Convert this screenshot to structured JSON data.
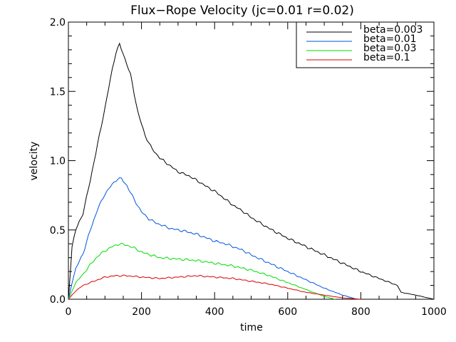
{
  "chart_data": {
    "type": "line",
    "title": "Flux−Rope Velocity (jc=0.01 r=0.02)",
    "xlabel": "time",
    "ylabel": "velocity",
    "xlim": [
      0,
      1000
    ],
    "ylim": [
      0,
      2.0
    ],
    "xticks": [
      0,
      200,
      400,
      600,
      800,
      1000
    ],
    "xtick_labels": [
      "0",
      "200",
      "400",
      "600",
      "800",
      "1000"
    ],
    "yticks": [
      0,
      0.5,
      1.0,
      1.5,
      2.0
    ],
    "ytick_labels": [
      "0.0",
      "0.5",
      "1.0",
      "1.5",
      "2.0"
    ],
    "x_minor_step": 50,
    "y_minor_step": 0.1,
    "grid": false,
    "legend_position": "top-right",
    "series": [
      {
        "name": "beta=0.003",
        "color": "#000000",
        "x": [
          0,
          10,
          20,
          40,
          60,
          80,
          100,
          120,
          130,
          140,
          150,
          170,
          190,
          210,
          230,
          250,
          270,
          290,
          300,
          330,
          350,
          380,
          400,
          430,
          450,
          480,
          500,
          550,
          600,
          650,
          700,
          750,
          800,
          850,
          900,
          910,
          950,
          1000
        ],
        "y": [
          0,
          0.38,
          0.5,
          0.62,
          0.86,
          1.12,
          1.38,
          1.66,
          1.78,
          1.84,
          1.77,
          1.62,
          1.35,
          1.18,
          1.08,
          1.02,
          0.98,
          0.94,
          0.92,
          0.89,
          0.86,
          0.81,
          0.78,
          0.72,
          0.68,
          0.63,
          0.59,
          0.51,
          0.44,
          0.38,
          0.32,
          0.26,
          0.2,
          0.15,
          0.1,
          0.05,
          0.03,
          0
        ]
      },
      {
        "name": "beta=0.01",
        "color": "#0055dd",
        "x": [
          0,
          10,
          20,
          40,
          60,
          80,
          100,
          120,
          135,
          145,
          160,
          180,
          200,
          220,
          240,
          260,
          280,
          300,
          320,
          350,
          370,
          400,
          430,
          450,
          480,
          500,
          550,
          600,
          650,
          700,
          750,
          790
        ],
        "y": [
          0,
          0.12,
          0.22,
          0.33,
          0.5,
          0.65,
          0.76,
          0.83,
          0.87,
          0.87,
          0.82,
          0.72,
          0.63,
          0.58,
          0.55,
          0.53,
          0.51,
          0.5,
          0.49,
          0.47,
          0.45,
          0.42,
          0.4,
          0.38,
          0.35,
          0.32,
          0.26,
          0.2,
          0.14,
          0.08,
          0.03,
          0
        ]
      },
      {
        "name": "beta=0.03",
        "color": "#00dd00",
        "x": [
          0,
          10,
          20,
          40,
          60,
          80,
          100,
          120,
          140,
          160,
          180,
          200,
          250,
          300,
          350,
          400,
          450,
          500,
          550,
          600,
          650,
          700,
          730
        ],
        "y": [
          0,
          0.06,
          0.12,
          0.18,
          0.25,
          0.31,
          0.35,
          0.38,
          0.4,
          0.39,
          0.37,
          0.34,
          0.3,
          0.29,
          0.28,
          0.26,
          0.24,
          0.21,
          0.17,
          0.12,
          0.07,
          0.02,
          0
        ]
      },
      {
        "name": "beta=0.1",
        "color": "#dd0000",
        "x": [
          0,
          10,
          20,
          40,
          60,
          80,
          100,
          130,
          160,
          200,
          250,
          300,
          350,
          400,
          450,
          500,
          550,
          600,
          650,
          700,
          750,
          800
        ],
        "y": [
          0,
          0.03,
          0.06,
          0.1,
          0.12,
          0.14,
          0.16,
          0.17,
          0.17,
          0.16,
          0.15,
          0.16,
          0.17,
          0.16,
          0.15,
          0.13,
          0.11,
          0.08,
          0.05,
          0.03,
          0.01,
          0
        ]
      }
    ]
  }
}
